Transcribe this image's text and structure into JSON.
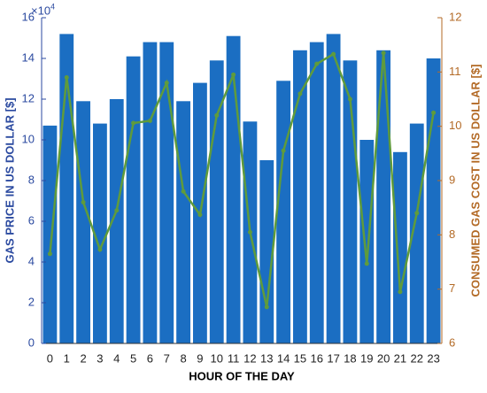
{
  "chart_data": {
    "type": "bar_line",
    "x_label": "HOUR OF THE DAY",
    "y_label": "GAS PRICE IN US DOLLAR  [$]",
    "y2_label": "CONSUMED GAS COST IN US DOLLAR  [$]",
    "y_scale_base": "×10",
    "y_scale_power": "4",
    "categories": [
      "0",
      "1",
      "2",
      "3",
      "4",
      "5",
      "6",
      "7",
      "8",
      "9",
      "10",
      "11",
      "12",
      "13",
      "14",
      "15",
      "16",
      "17",
      "18",
      "19",
      "20",
      "21",
      "22",
      "23"
    ],
    "series": [
      {
        "type": "bar",
        "color": "#1b6ec2",
        "values": [
          10.7,
          15.2,
          11.9,
          10.8,
          12.0,
          14.1,
          14.8,
          14.8,
          11.9,
          12.8,
          13.9,
          15.1,
          10.9,
          9.0,
          12.9,
          14.4,
          14.8,
          15.2,
          13.9,
          10.0,
          14.4,
          9.4,
          10.8,
          14.0
        ]
      },
      {
        "type": "line",
        "axis": "y2",
        "color": "#5f9b3c",
        "values": [
          7.65,
          10.9,
          8.6,
          7.73,
          8.45,
          10.06,
          10.1,
          10.8,
          8.8,
          8.37,
          10.2,
          10.95,
          8.05,
          6.67,
          9.55,
          10.6,
          11.15,
          11.33,
          10.5,
          7.47,
          11.35,
          6.95,
          8.4,
          10.25
        ]
      }
    ],
    "ylim": [
      0,
      16
    ],
    "yticks": [
      0,
      2,
      4,
      6,
      8,
      10,
      12,
      14,
      16
    ],
    "y2lim": [
      6,
      12
    ],
    "y2ticks": [
      6,
      7,
      8,
      9,
      10,
      11,
      12
    ],
    "y_axis_color": "#2b4aa0",
    "y2_axis_color": "#b36a26"
  }
}
